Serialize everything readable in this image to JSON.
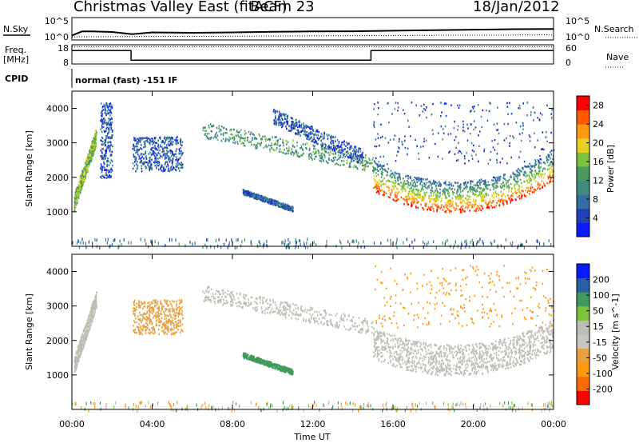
{
  "header": {
    "title": "Christmas Valley East (fitACF)",
    "beam": "Beam 23",
    "date": "18/Jan/2012"
  },
  "side_labels": {
    "nsky": "N.Sky",
    "nsearch": "N.Search",
    "freq_line1": "Freq.",
    "freq_line2": "[MHz]",
    "nave": "Nave",
    "cpid": "CPID",
    "cpid_text": "normal (fast) -151 IF"
  },
  "chart_data": [
    {
      "type": "line",
      "name": "noise",
      "left_ticks": [
        "10^5",
        "10^0"
      ],
      "right_ticks": [
        "10^5",
        "10^0"
      ],
      "series": [
        {
          "name": "N.Sky",
          "x": [
            0,
            0.5,
            1,
            2,
            3,
            4,
            6,
            8,
            10,
            12,
            14,
            16,
            18,
            20,
            22,
            24
          ],
          "values": [
            10,
            80,
            80,
            60,
            20,
            50,
            40,
            50,
            70,
            80,
            90,
            120,
            160,
            200,
            260,
            280
          ]
        },
        {
          "name": "N.Search",
          "x": [
            0,
            4,
            8,
            12,
            16,
            20,
            24
          ],
          "values": [
            5,
            6,
            7,
            8,
            10,
            12,
            14
          ]
        }
      ]
    },
    {
      "type": "line",
      "name": "frequency-nave",
      "left_ticks": [
        "18",
        "8"
      ],
      "right_ticks": [
        "60",
        "0"
      ],
      "series": [
        {
          "name": "Freq.",
          "x": [
            0,
            2.95,
            2.95,
            14.9,
            14.9,
            24
          ],
          "values": [
            15,
            15,
            10,
            10,
            15,
            15
          ]
        },
        {
          "name": "Nave",
          "x": [
            0,
            24
          ],
          "values": [
            17,
            17
          ]
        }
      ]
    },
    {
      "type": "heatmap",
      "name": "power",
      "ylabel": "Slant Range [km]",
      "colorbar_label": "Power [dB]",
      "x_ticks": [
        "00:00",
        "04:00",
        "08:00",
        "12:00",
        "16:00",
        "20:00",
        "00:00"
      ],
      "y_ticks": [
        1000,
        2000,
        3000,
        4000
      ],
      "ylim": [
        0,
        4500
      ],
      "colorbar_ticks": [
        4,
        8,
        12,
        16,
        20,
        24,
        28
      ],
      "colorbar_range": [
        0,
        30
      ],
      "features": [
        {
          "x": [
            0.1,
            1.2
          ],
          "y": [
            1300,
            3200
          ],
          "value": 16,
          "shape": "rising arc"
        },
        {
          "x": [
            1.4,
            2.0
          ],
          "y": [
            2000,
            4200
          ],
          "value": 6,
          "shape": "scatter"
        },
        {
          "x": [
            3.0,
            5.5
          ],
          "y": [
            2200,
            3200
          ],
          "value": 6,
          "shape": "patch"
        },
        {
          "x": [
            6.5,
            15.0
          ],
          "y": [
            2400,
            3400
          ],
          "value": 12,
          "shape": "descending band"
        },
        {
          "x": [
            8.5,
            11.0
          ],
          "y": [
            1100,
            1600
          ],
          "value": 7,
          "shape": "descending streak"
        },
        {
          "x": [
            10.0,
            14.5
          ],
          "y": [
            2600,
            3800
          ],
          "value": 6,
          "shape": "descending band"
        },
        {
          "x": [
            15.0,
            24.0
          ],
          "y": [
            900,
            2300
          ],
          "value": 25,
          "shape": "bowl"
        },
        {
          "x": [
            15.0,
            24.0
          ],
          "y": [
            2400,
            4200
          ],
          "value": 6,
          "shape": "scatter"
        }
      ]
    },
    {
      "type": "heatmap",
      "name": "velocity",
      "xlabel": "Time UT",
      "ylabel": "Slant Range [km]",
      "colorbar_label": "Velocity [m s^-1]",
      "x_ticks": [
        "00:00",
        "04:00",
        "08:00",
        "12:00",
        "16:00",
        "20:00",
        "00:00"
      ],
      "y_ticks": [
        1000,
        2000,
        3000,
        4000
      ],
      "ylim": [
        0,
        4500
      ],
      "colorbar_ticks": [
        200,
        100,
        50,
        15,
        -15,
        -50,
        -100,
        -200
      ],
      "features": [
        {
          "x": [
            0.1,
            1.2
          ],
          "y": [
            1300,
            3200
          ],
          "value": 0,
          "shape": "rising arc"
        },
        {
          "x": [
            3.0,
            5.5
          ],
          "y": [
            2200,
            3200
          ],
          "value": -40,
          "shape": "patch"
        },
        {
          "x": [
            6.5,
            15.0
          ],
          "y": [
            2400,
            3400
          ],
          "value": -10,
          "shape": "descending band"
        },
        {
          "x": [
            8.5,
            11.0
          ],
          "y": [
            1100,
            1600
          ],
          "value": 60,
          "shape": "descending streak"
        },
        {
          "x": [
            15.0,
            24.0
          ],
          "y": [
            900,
            2000
          ],
          "value": 0,
          "shape": "bowl"
        },
        {
          "x": [
            15.0,
            24.0
          ],
          "y": [
            2400,
            4200
          ],
          "value": -60,
          "shape": "scatter"
        }
      ]
    }
  ],
  "colors": {
    "power_scale": [
      "#0a1aff",
      "#2140b8",
      "#356ea2",
      "#3f8b7f",
      "#4a9a5e",
      "#7cc43a",
      "#e8d020",
      "#ff9a10",
      "#ff5a00",
      "#ff0000"
    ],
    "velocity_scale": [
      "#ff0000",
      "#ff6a00",
      "#ff9a10",
      "#e8a040",
      "#c8c8c0",
      "#bdbdb4",
      "#7cc43a",
      "#3f9a5e",
      "#2a5ea8",
      "#0a1aff"
    ]
  }
}
